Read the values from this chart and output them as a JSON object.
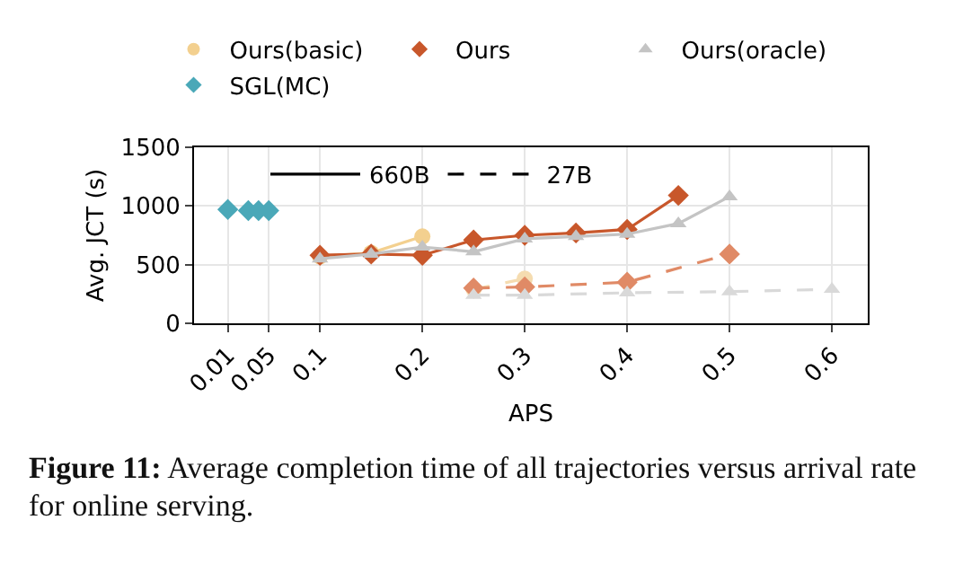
{
  "chart_data": {
    "type": "line",
    "xlabel": "APS",
    "ylabel": "Avg. JCT (s)",
    "annotations": [
      "Figure 11: Average completion time of all trajectories versus arrival rate for online serving."
    ],
    "xlim": [
      -0.023,
      0.635
    ],
    "xticks": [
      0.01,
      0.05,
      0.1,
      0.2,
      0.3,
      0.4,
      0.5,
      0.6
    ],
    "ylim": [
      0,
      1500
    ],
    "yticks": [
      0,
      500,
      1000,
      1500
    ],
    "grid": true,
    "legend": "top",
    "series": [
      {
        "name": "Ours(basic)",
        "color": "#f3d08f",
        "marker": "circle",
        "line_style": "solid",
        "x": [
          0.1,
          0.15,
          0.2
        ],
        "values": [
          570,
          600,
          740
        ]
      },
      {
        "name": "Ours",
        "color": "#c8572b",
        "marker": "diamond",
        "line_style": "solid",
        "x": [
          0.1,
          0.15,
          0.2,
          0.25,
          0.3,
          0.35,
          0.4,
          0.45
        ],
        "values": [
          580,
          590,
          580,
          710,
          750,
          770,
          800,
          1090
        ]
      },
      {
        "name": "Ours(oracle)",
        "color": "#c4c4c4",
        "marker": "triangle",
        "line_style": "solid",
        "x": [
          0.1,
          0.15,
          0.2,
          0.25,
          0.3,
          0.35,
          0.4,
          0.45,
          0.5
        ],
        "values": [
          550,
          590,
          650,
          610,
          720,
          740,
          760,
          850,
          1080
        ]
      },
      {
        "name": "SGL(MC)",
        "type": "scatter",
        "color": "#4aa8b8",
        "marker": "diamond",
        "x": [
          0.01,
          0.03,
          0.04,
          0.05
        ],
        "values": [
          970,
          960,
          960,
          960
        ]
      },
      {
        "color": "#f5dcb0",
        "marker": "circle",
        "line_style": "dashed",
        "x": [
          0.25,
          0.3
        ],
        "values": [
          290,
          380
        ]
      },
      {
        "color": "#e08a66",
        "marker": "diamond",
        "line_style": "dashed",
        "x": [
          0.25,
          0.3,
          0.4,
          0.5
        ],
        "values": [
          300,
          310,
          350,
          590
        ]
      },
      {
        "color": "#d9d9d9",
        "marker": "triangle",
        "line_style": "dashed",
        "x": [
          0.25,
          0.3,
          0.4,
          0.5,
          0.6
        ],
        "values": [
          240,
          240,
          260,
          270,
          290
        ]
      },
      {
        "name": "660B",
        "color": "#000000",
        "marker": "none",
        "line_style": "solid",
        "x": [
          null
        ],
        "values": [
          null
        ]
      },
      {
        "name": "27B",
        "color": "#000000",
        "marker": "none",
        "line_style": "dashed",
        "x": [
          null
        ],
        "values": [
          null
        ]
      }
    ]
  }
}
